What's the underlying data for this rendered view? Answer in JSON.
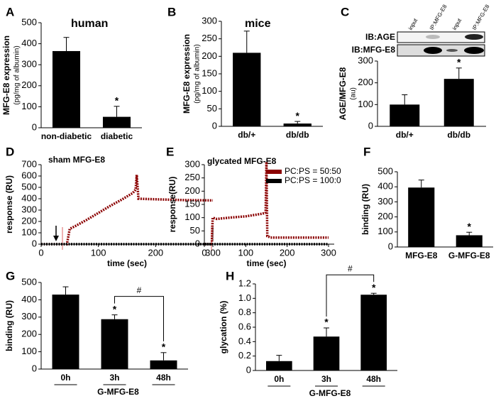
{
  "chart_data": [
    {
      "panel": "A",
      "type": "bar",
      "title": "human",
      "ylabel": [
        "MFG-E8 expression",
        "(pg/mg of albumin)"
      ],
      "categories": [
        "non-diabetic",
        "diabetic"
      ],
      "values": [
        365,
        52
      ],
      "errors": [
        65,
        50
      ],
      "color": "#000000",
      "ylim": [
        0,
        500
      ],
      "yticks": [
        0,
        100,
        200,
        300,
        400,
        500
      ],
      "annotations": [
        {
          "text": "*",
          "at": "diabetic"
        }
      ]
    },
    {
      "panel": "B",
      "type": "bar",
      "title": "mice",
      "ylabel": [
        "MFG-E8 expression",
        "(pg/mg of albumin)"
      ],
      "categories": [
        "db/+",
        "db/db"
      ],
      "values": [
        210,
        8
      ],
      "errors": [
        62,
        6
      ],
      "color": "#000000",
      "ylim": [
        0,
        300
      ],
      "yticks": [
        0,
        50,
        100,
        150,
        200,
        250,
        300
      ],
      "annotations": [
        {
          "text": "*",
          "at": "db/db"
        }
      ]
    },
    {
      "panel": "C",
      "type": "bar",
      "ylabel": [
        "AGE/MFG-E8",
        "(au)"
      ],
      "blot": {
        "lanes": [
          "input",
          "IP:MFG-E8",
          "input",
          "IP:MFG-E8"
        ],
        "rows": [
          "IB:AGE",
          "IB:MFG-E8"
        ]
      },
      "categories": [
        "db/+",
        "db/db"
      ],
      "values": [
        100,
        218
      ],
      "errors": [
        45,
        50
      ],
      "color": "#000000",
      "ylim": [
        0,
        300
      ],
      "yticks": [
        0,
        100,
        200,
        300
      ],
      "annotations": [
        {
          "text": "*",
          "at": "db/db"
        }
      ]
    },
    {
      "panel": "D",
      "type": "line",
      "title": "sham MFG-E8",
      "xlabel": "time (sec)",
      "ylabel": [
        "response (RU)"
      ],
      "xlim": [
        0,
        300
      ],
      "xticks": [
        0,
        100,
        200,
        300
      ],
      "ylim": [
        0,
        700
      ],
      "yticks": [
        0,
        100,
        200,
        300,
        400,
        500,
        600,
        700
      ],
      "series": [
        {
          "color": "#8b0000",
          "x": [
            0,
            45,
            50,
            60,
            80,
            100,
            120,
            140,
            160,
            165,
            167,
            170,
            200,
            250,
            300
          ],
          "values": [
            0,
            0,
            135,
            160,
            215,
            275,
            335,
            390,
            450,
            480,
            610,
            400,
            395,
            388,
            385
          ]
        },
        {
          "color": "#000000",
          "x": [
            0,
            300
          ],
          "values": [
            0,
            0
          ]
        }
      ]
    },
    {
      "panel": "E",
      "type": "line",
      "title": "glycated MFG-E8",
      "xlabel": "time (sec)",
      "ylabel": [
        "response(RU)"
      ],
      "xlim": [
        0,
        300
      ],
      "xticks": [
        0,
        100,
        200,
        300
      ],
      "ylim": [
        0,
        300
      ],
      "yticks": [
        0,
        50,
        100,
        150,
        200,
        250,
        300
      ],
      "legend": "upper right",
      "series": [
        {
          "name": "PC:PS =  50:50",
          "color": "#8b0000",
          "x": [
            0,
            18,
            20,
            30,
            60,
            100,
            140,
            148,
            150,
            152,
            160,
            200,
            250,
            300
          ],
          "values": [
            0,
            0,
            100,
            95,
            100,
            105,
            115,
            118,
            310,
            30,
            25,
            25,
            25,
            25
          ]
        },
        {
          "name": "PC:PS = 100:0",
          "color": "#000000",
          "x": [
            0,
            300
          ],
          "values": [
            0,
            0
          ]
        }
      ]
    },
    {
      "panel": "F",
      "type": "bar",
      "ylabel": [
        "binding (RU)"
      ],
      "categories": [
        "MFG-E8",
        "G-MFG-E8"
      ],
      "values": [
        395,
        78
      ],
      "errors": [
        50,
        20
      ],
      "color": "#000000",
      "ylim": [
        0,
        500
      ],
      "yticks": [
        0,
        100,
        200,
        300,
        400,
        500
      ],
      "annotations": [
        {
          "text": "*",
          "at": "G-MFG-E8"
        }
      ]
    },
    {
      "panel": "G",
      "type": "bar",
      "ylabel": [
        "binding (RU)"
      ],
      "xlabel": "G-MFG-E8",
      "categories": [
        "0h",
        "3h",
        "48h"
      ],
      "values": [
        430,
        288,
        50
      ],
      "errors": [
        45,
        25,
        45
      ],
      "color": "#000000",
      "ylim": [
        0,
        500
      ],
      "yticks": [
        0,
        100,
        200,
        300,
        400,
        500
      ],
      "annotations": [
        {
          "text": "*",
          "at": "3h"
        },
        {
          "text": "*",
          "at": "48h"
        },
        {
          "text": "#",
          "from": "3h",
          "to": "48h"
        }
      ]
    },
    {
      "panel": "H",
      "type": "bar",
      "ylabel": [
        "glycation (%)"
      ],
      "xlabel": "G-MFG-E8",
      "categories": [
        "0h",
        "3h",
        "48h"
      ],
      "values": [
        0.13,
        0.47,
        1.05
      ],
      "errors": [
        0.08,
        0.12,
        0.02
      ],
      "color": "#000000",
      "ylim": [
        0,
        1.2
      ],
      "yticks": [
        0,
        0.2,
        0.4,
        0.6,
        0.8,
        {
          "value": 1,
          "label": "1.0"
        },
        1.2
      ],
      "annotations": [
        {
          "text": "*",
          "at": "3h"
        },
        {
          "text": "*",
          "at": "48h"
        },
        {
          "text": "#",
          "from": "3h",
          "to": "48h"
        }
      ]
    }
  ]
}
